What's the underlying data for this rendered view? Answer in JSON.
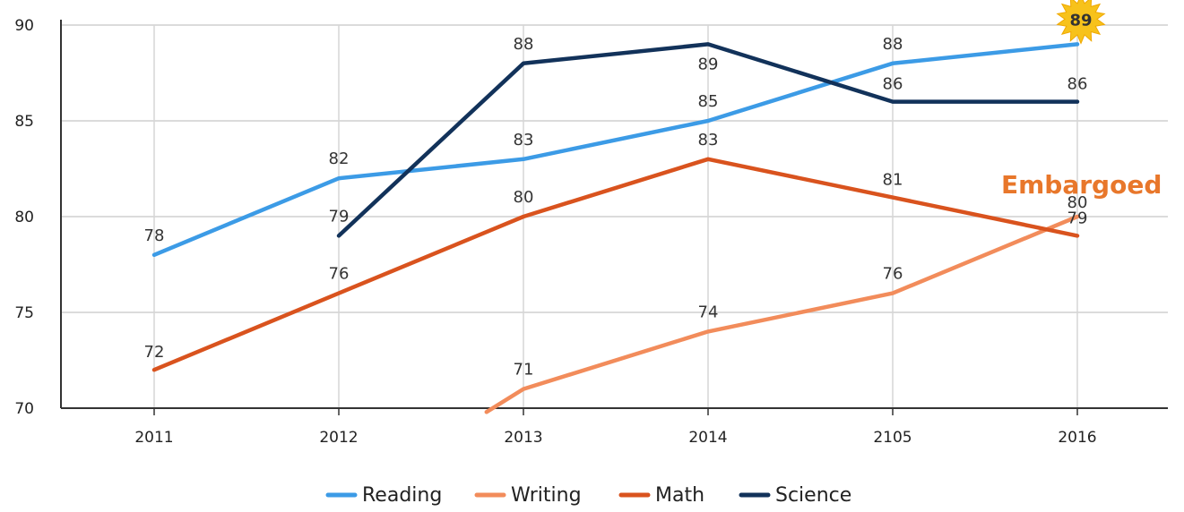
{
  "chart_data": {
    "type": "line",
    "categories": [
      "2011",
      "2012",
      "2013",
      "2014",
      "2105",
      "2016"
    ],
    "y_ticks": [
      "70",
      "75",
      "80",
      "85",
      "90"
    ],
    "ylim": [
      70,
      90
    ],
    "grid": true,
    "legend_position": "bottom",
    "annotation": "Embargoed",
    "badge_value": "89",
    "series": [
      {
        "name": "Reading",
        "color": "#3c9be6",
        "values": [
          78,
          82,
          83,
          85,
          88,
          89
        ],
        "labels": [
          "78",
          "82",
          "83",
          "85",
          "88",
          "89"
        ]
      },
      {
        "name": "Writing",
        "color": "#f28c5b",
        "values": [
          null,
          null,
          71,
          74,
          76,
          80
        ],
        "labels": [
          null,
          null,
          "71",
          "74",
          "76",
          "80"
        ],
        "start_below_axis": {
          "x_index": 1.8,
          "y": 69.8
        }
      },
      {
        "name": "Math",
        "color": "#d9531e",
        "values": [
          72,
          76,
          80,
          83,
          81,
          79
        ],
        "labels": [
          "72",
          "76",
          "80",
          "83",
          "81",
          "79"
        ]
      },
      {
        "name": "Science",
        "color": "#12325a",
        "values": [
          null,
          79,
          88,
          89,
          86,
          86
        ],
        "labels": [
          null,
          "79",
          "88",
          "89",
          "86",
          "86"
        ]
      }
    ]
  }
}
